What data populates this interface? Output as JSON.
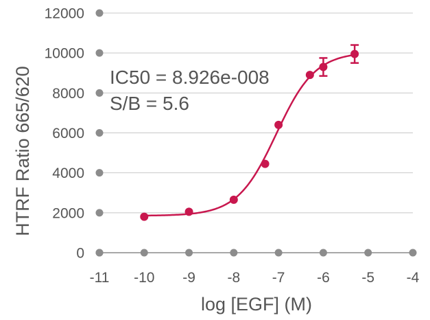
{
  "chart_data": {
    "type": "scatter",
    "xlabel": "log [EGF] (M)",
    "ylabel": "HTRF Ratio 665/620",
    "xlim": [
      -11,
      -4
    ],
    "ylim": [
      0,
      12000
    ],
    "x_ticks": [
      "-11",
      "-10",
      "-9",
      "-8",
      "-7",
      "-6",
      "-5",
      "-4"
    ],
    "y_ticks": [
      "0",
      "2000",
      "4000",
      "6000",
      "8000",
      "10000",
      "12000"
    ],
    "grid": "horizontal",
    "annotations": [
      "IC50 = 8.926e-008",
      "S/B = 5.6"
    ],
    "series": [
      {
        "x": [
          -10,
          -9,
          -8,
          -7.3,
          -7,
          -6.3,
          -6,
          -5.3
        ],
        "y": [
          1800,
          2050,
          2650,
          4450,
          6400,
          8900,
          9300,
          9950
        ],
        "error": [
          0,
          0,
          0,
          0,
          0,
          0,
          450,
          450
        ],
        "fit": {
          "model": "4PL",
          "bottom": 1850,
          "top": 10050,
          "log_ic50": -7.05,
          "hill": 1.0
        }
      }
    ],
    "colors": {
      "series": "#c8174e",
      "grid": "#c8c8c8",
      "axis_dot": "#8c8c8c",
      "text": "#555555"
    }
  }
}
